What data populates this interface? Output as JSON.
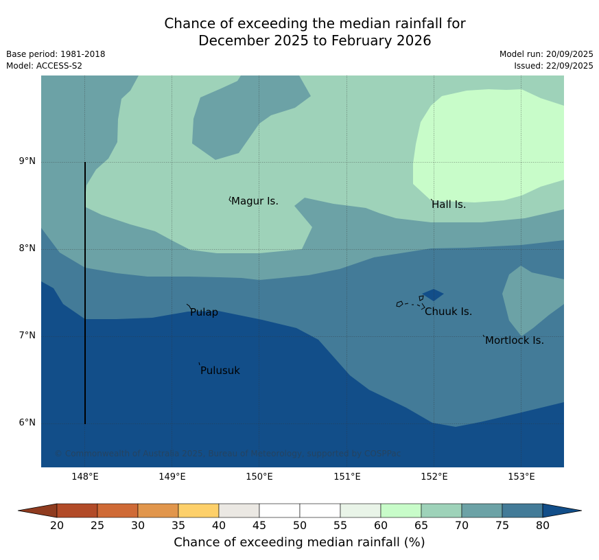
{
  "title": {
    "line1": "Chance of exceeding the median rainfall for",
    "line2": "December 2025 to February 2026"
  },
  "meta": {
    "base_period": "Base period: 1981-2018",
    "model": "Model: ACCESS-S2",
    "model_run": "Model run: 20/09/2025",
    "issued": "Issued: 22/09/2025"
  },
  "map": {
    "lat_labels": [
      "9°N",
      "8°N",
      "7°N",
      "6°N"
    ],
    "lon_labels": [
      "148°E",
      "149°E",
      "150°E",
      "151°E",
      "152°E",
      "153°E"
    ],
    "places": [
      "Magur Is.",
      "Hall Is.",
      "Pulap",
      "Chuuk Is.",
      "Mortlock Is.",
      "Pulusuk"
    ],
    "copyright": "© Commonwealth of Australia 2025, Bureau of Meteorology, supported by COSPPac"
  },
  "colorbar": {
    "ticks": [
      "20",
      "25",
      "30",
      "35",
      "40",
      "45",
      "50",
      "55",
      "60",
      "65",
      "70",
      "75",
      "80"
    ],
    "colors": [
      "#b24b28",
      "#cf6a36",
      "#e1964c",
      "#fdd06a",
      "#ebe8e3",
      "#ffffff",
      "#ffffff",
      "#e9f4e8",
      "#c8fcc9",
      "#9ed2b9",
      "#6ca2a6",
      "#437b98"
    ],
    "under_color": "#8f3b1f",
    "over_color": "#124e89",
    "label": "Chance of exceeding median rainfall (%)"
  },
  "palette": {
    "p80": "#124e89",
    "p75_80": "#437b98",
    "p70_75": "#6ca2a6",
    "p65_70": "#9ed2b9",
    "p60_65": "#c8fcc9"
  }
}
